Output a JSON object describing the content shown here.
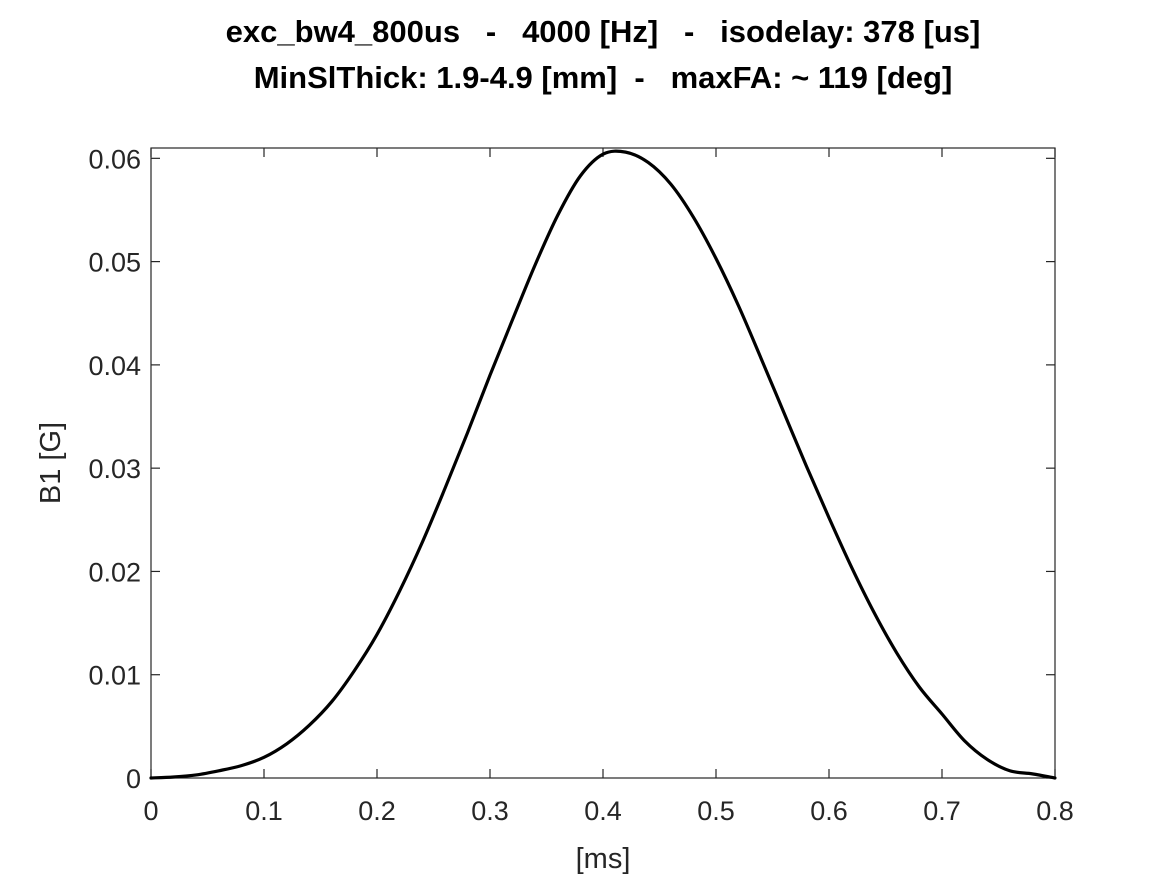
{
  "figure": {
    "title_line1": "exc_bw4_800us   -   4000 [Hz]   -   isodelay: 378 [us]",
    "title_line2": "MinSlThick: 1.9-4.9 [mm]  -   maxFA: ~ 119 [deg]"
  },
  "chart_data": {
    "type": "line",
    "title": "exc_bw4_800us   -   4000 [Hz]   -   isodelay: 378 [us]\nMinSlThick: 1.9-4.9 [mm]  -   maxFA: ~ 119 [deg]",
    "xlabel": "[ms]",
    "ylabel": "B1 [G]",
    "xlim": [
      0,
      0.8
    ],
    "ylim": [
      0,
      0.061
    ],
    "xticks": [
      0,
      0.1,
      0.2,
      0.3,
      0.4,
      0.5,
      0.6,
      0.7,
      0.8
    ],
    "yticks": [
      0,
      0.01,
      0.02,
      0.03,
      0.04,
      0.05,
      0.06
    ],
    "xtick_labels": [
      "0",
      "0.1",
      "0.2",
      "0.3",
      "0.4",
      "0.5",
      "0.6",
      "0.7",
      "0.8"
    ],
    "ytick_labels": [
      "0",
      "0.01",
      "0.02",
      "0.03",
      "0.04",
      "0.05",
      "0.06"
    ],
    "grid": false,
    "box": true,
    "series": [
      {
        "color": "#000000",
        "x": [
          0,
          0.02,
          0.04,
          0.06,
          0.08,
          0.1,
          0.12,
          0.14,
          0.16,
          0.18,
          0.2,
          0.22,
          0.24,
          0.26,
          0.28,
          0.3,
          0.32,
          0.34,
          0.36,
          0.38,
          0.4,
          0.42,
          0.44,
          0.46,
          0.48,
          0.5,
          0.52,
          0.54,
          0.56,
          0.58,
          0.6,
          0.62,
          0.64,
          0.66,
          0.68,
          0.7,
          0.72,
          0.74,
          0.76,
          0.78,
          0.8
        ],
        "y": [
          0.0,
          0.0001,
          0.0003,
          0.0007,
          0.0012,
          0.002,
          0.0033,
          0.0051,
          0.0074,
          0.0104,
          0.0139,
          0.0181,
          0.0228,
          0.028,
          0.0334,
          0.039,
          0.0444,
          0.0497,
          0.0545,
          0.0583,
          0.0604,
          0.0606,
          0.0596,
          0.0575,
          0.0543,
          0.0503,
          0.0457,
          0.0406,
          0.0354,
          0.0302,
          0.0252,
          0.0204,
          0.016,
          0.0121,
          0.0088,
          0.0062,
          0.0036,
          0.0018,
          0.0007,
          0.0004,
          0.0
        ]
      }
    ]
  }
}
